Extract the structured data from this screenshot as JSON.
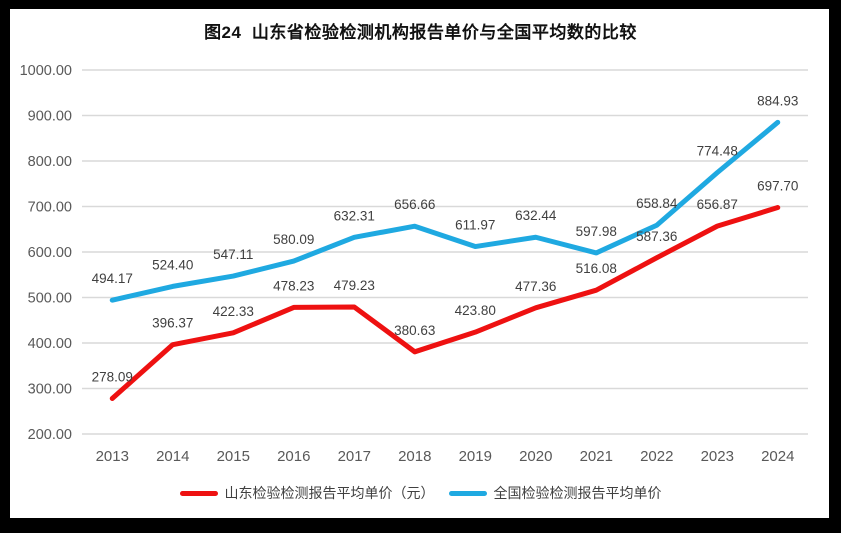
{
  "window": {
    "border_color": "#000000",
    "background_color": "#ffffff"
  },
  "chart_data": {
    "type": "line",
    "title": "图24  山东省检验检测机构报告单价与全国平均数的比较",
    "categories": [
      "2013",
      "2014",
      "2015",
      "2016",
      "2017",
      "2018",
      "2019",
      "2020",
      "2021",
      "2022",
      "2023",
      "2024"
    ],
    "series": [
      {
        "name": "山东检验检测报告平均单价（元）",
        "color": "#ee1111",
        "values": [
          278.09,
          396.37,
          422.33,
          478.23,
          479.23,
          380.63,
          423.8,
          477.36,
          516.08,
          587.36,
          656.87,
          697.7
        ]
      },
      {
        "name": "全国检验检测报告平均单价",
        "color": "#1fa9e1",
        "values": [
          494.17,
          524.4,
          547.11,
          580.09,
          632.31,
          656.66,
          611.97,
          632.44,
          597.98,
          658.84,
          774.48,
          884.93
        ]
      }
    ],
    "ylim": [
      200,
      1000
    ],
    "yticks": [
      200,
      300,
      400,
      500,
      600,
      700,
      800,
      900,
      1000
    ],
    "ytick_labels": [
      "200.00",
      "300.00",
      "400.00",
      "500.00",
      "600.00",
      "700.00",
      "800.00",
      "900.00",
      "1000.00"
    ],
    "data_labels": true,
    "data_label_decimals": 2,
    "grid": true,
    "legend_position": "bottom",
    "style": {
      "gridline_color": "#d9d9d9",
      "tick_label_color": "#595959",
      "data_label_color": "#404040",
      "line_width": 5
    }
  }
}
